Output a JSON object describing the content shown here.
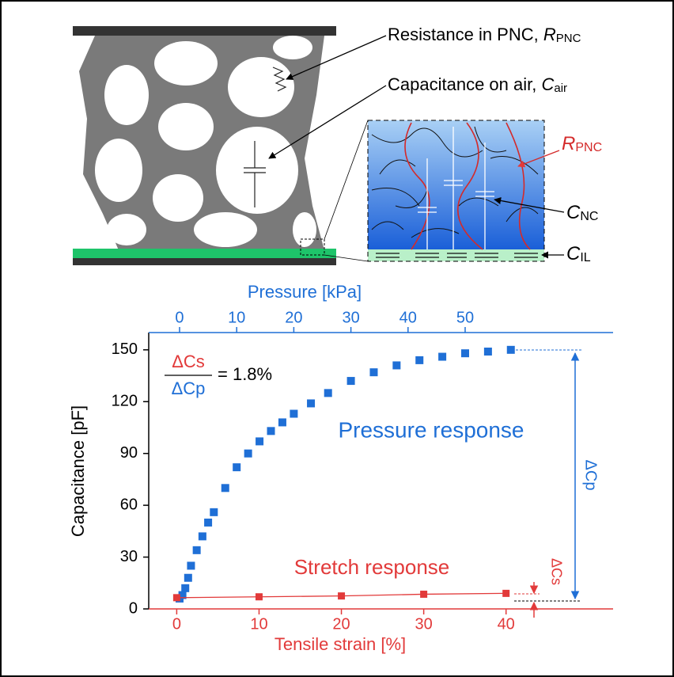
{
  "diagram": {
    "resistance_label": "Resistance in PNC, ",
    "resistance_symbol": "R",
    "resistance_sub": "PNC",
    "air_label": "Capacitance on air, ",
    "air_symbol": "C",
    "air_sub": "air",
    "inset_r_symbol": "R",
    "inset_r_sub": "PNC",
    "nc_symbol": "C",
    "nc_sub": "NC",
    "il_symbol": "C",
    "il_sub": "IL"
  },
  "chart_data": {
    "type": "scatter",
    "y_label": "Capacitance [pF]",
    "x_label": "Tensile strain [%]",
    "x2_label": "Pressure [kPa]",
    "xlim": [
      -3.4,
      53
    ],
    "xticks": [
      0,
      10,
      20,
      30,
      40
    ],
    "x2lim": [
      -5.4,
      75.9
    ],
    "x2ticks": [
      0,
      10,
      20,
      30,
      40,
      50
    ],
    "ylim": [
      0,
      160
    ],
    "yticks": [
      0,
      30,
      60,
      90,
      120,
      150
    ],
    "ratio_numerator": "ΔCs",
    "ratio_denominator": "ΔCp",
    "ratio_value": "= 1.8%",
    "delta_p_label": "ΔCp",
    "delta_s_label": "ΔCs",
    "series": [
      {
        "name": "Pressure response",
        "color": "#1f6fd6",
        "axis": "x2",
        "x": [
          0,
          0.5,
          1,
          1.5,
          2,
          3,
          4,
          5,
          6,
          8,
          10,
          12,
          14,
          16,
          18,
          20,
          23,
          26,
          30,
          34,
          38,
          42,
          46,
          50,
          54,
          58
        ],
        "values": [
          6,
          8,
          12,
          18,
          25,
          34,
          42,
          50,
          56,
          70,
          82,
          90,
          97,
          103,
          108,
          113,
          119,
          125,
          132,
          137,
          141,
          144,
          146,
          148,
          149,
          150
        ]
      },
      {
        "name": "Stretch response",
        "color": "#e23a3a",
        "x": [
          0,
          10,
          20,
          30,
          40
        ],
        "values": [
          6.5,
          7,
          7.5,
          8.5,
          9
        ]
      }
    ]
  }
}
